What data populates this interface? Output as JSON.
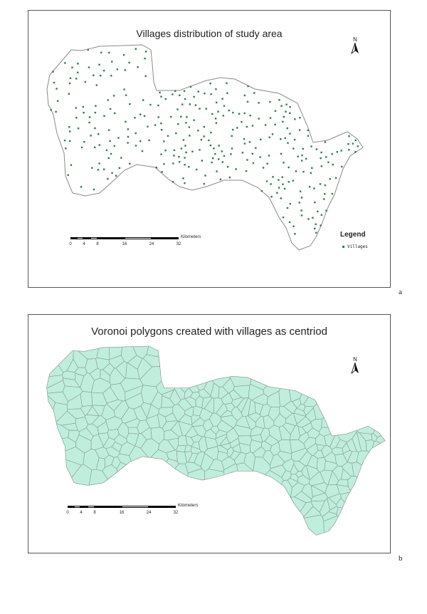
{
  "panel_a": {
    "title": "Villages distribution of study area",
    "north_label": "N",
    "scale_unit": "Kilometers",
    "scale_ticks": [
      "0",
      "4",
      "8",
      "16",
      "24",
      "32"
    ],
    "legend_title": "Legend",
    "legend_item": "Villages",
    "village_color": "#2e7d45",
    "label": "a"
  },
  "panel_b": {
    "title": "Voronoi polygons created with villages as centriod",
    "north_label": "N",
    "scale_unit": "Kilometers",
    "scale_ticks": [
      "0",
      "4",
      "8",
      "16",
      "24",
      "32"
    ],
    "fill_color": "#bfeedd",
    "label": "b"
  }
}
